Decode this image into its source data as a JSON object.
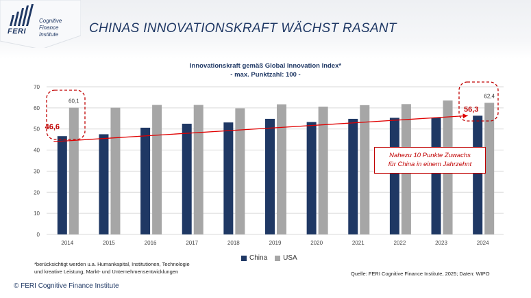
{
  "header": {
    "logo_name": "FERI",
    "logo_sub": [
      "Cognitive",
      "Finance",
      "Institute"
    ],
    "title": "CHINAS INNOVATIONSKRAFT WÄCHST RASANT"
  },
  "chart_data": {
    "type": "bar",
    "title": "Innovationskraft gemäß Global Innovation Index*",
    "subtitle": "- max. Punktzahl: 100 -",
    "categories": [
      "2014",
      "2015",
      "2016",
      "2017",
      "2018",
      "2019",
      "2020",
      "2021",
      "2022",
      "2023",
      "2024"
    ],
    "series": [
      {
        "name": "China",
        "color": "#1f3864",
        "values": [
          46.6,
          47.5,
          50.6,
          52.5,
          53.1,
          54.8,
          53.3,
          54.8,
          55.3,
          55.3,
          56.3
        ]
      },
      {
        "name": "USA",
        "color": "#a6a6a6",
        "values": [
          60.1,
          60.1,
          61.4,
          61.4,
          59.8,
          61.7,
          60.6,
          61.3,
          61.8,
          63.5,
          62.4
        ]
      }
    ],
    "ylim": [
      0,
      70
    ],
    "yticks": [
      0,
      10,
      20,
      30,
      40,
      50,
      60,
      70
    ],
    "grid": true,
    "legend": "bottom-center",
    "data_labels": [
      {
        "series": "China",
        "category": "2014",
        "text": "46,6"
      },
      {
        "series": "USA",
        "category": "2014",
        "text": "60,1"
      },
      {
        "series": "China",
        "category": "2024",
        "text": "56,3"
      },
      {
        "series": "USA",
        "category": "2024",
        "text": "62,4"
      }
    ],
    "trend_arrow": {
      "from": {
        "category": "2014",
        "value": 44
      },
      "to": {
        "category": "2024",
        "value": 56.3
      },
      "color": "#e00000"
    },
    "annotation": [
      "Nahezu 10 Punkte Zuwachs",
      "für China in einem Jahrzehnt"
    ]
  },
  "footnote": [
    "*berücksichtigt werden u.a. Humankapital, Institutionen, Technologie",
    "und kreative Leistung, Markt- und Unternehmensentwicklungen"
  ],
  "source": "Quelle: FERI Cognitive Finance Institute, 2025; Daten: WIPO",
  "copyright": "© FERI Cognitive Finance Institute",
  "colors": {
    "accent": "#1f3864",
    "highlight": "#c00000"
  }
}
